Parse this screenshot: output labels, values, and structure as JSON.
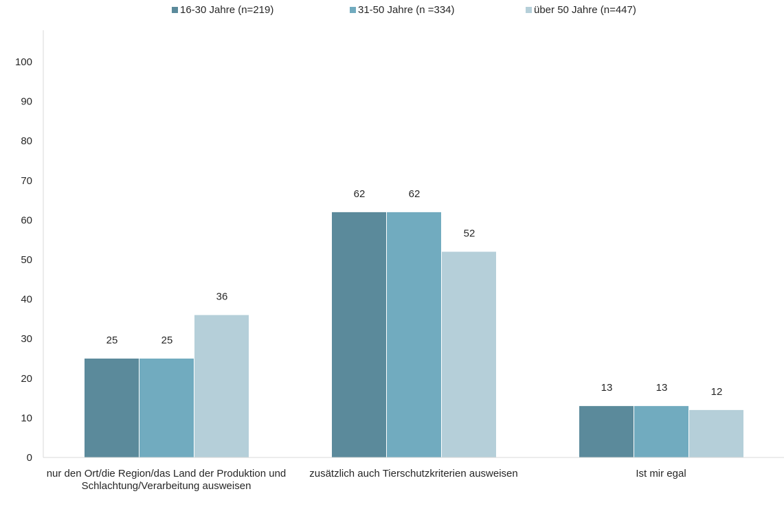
{
  "chart_data": {
    "type": "bar",
    "title": "",
    "xlabel": "",
    "ylabel": "",
    "ylim": [
      0,
      100
    ],
    "yticks": [
      0,
      10,
      20,
      30,
      40,
      50,
      60,
      70,
      80,
      90,
      100
    ],
    "grid": false,
    "legend_position": "top",
    "categories": [
      "nur den Ort/die Region/das Land der Produktion und Schlachtung/Verarbeitung ausweisen",
      "zusätzlich auch Tierschutzkriterien ausweisen",
      "Ist mir egal"
    ],
    "series": [
      {
        "name": "16-30 Jahre (n=219)",
        "color": "#5b8a9b",
        "values": [
          25,
          62,
          13
        ],
        "labels": [
          "25",
          "62",
          "13"
        ]
      },
      {
        "name": "31-50 Jahre (n =334)",
        "color": "#71abbf",
        "values": [
          25,
          62,
          13
        ],
        "labels": [
          "25",
          "62",
          "13"
        ]
      },
      {
        "name": "über 50 Jahre (n=447)",
        "color": "#b5cfd9",
        "values": [
          36,
          52,
          12
        ],
        "labels": [
          "36",
          "52",
          "12"
        ]
      }
    ]
  }
}
